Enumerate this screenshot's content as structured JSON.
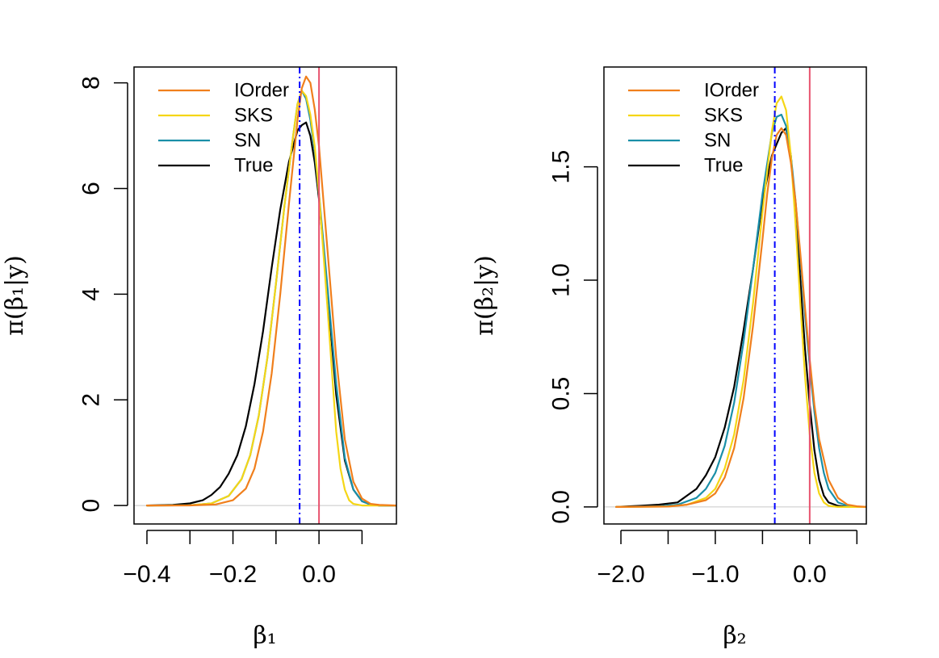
{
  "figure_title": "",
  "chart_data": [
    {
      "type": "line",
      "title": "",
      "xlabel": "β₁",
      "ylabel": "π(β₁|y)",
      "xlim": [
        -0.43,
        0.18
      ],
      "ylim": [
        -0.35,
        8.3
      ],
      "x_ticks": [
        -0.4,
        -0.3,
        -0.2,
        -0.1,
        0.0,
        0.1
      ],
      "x_tick_labels": [
        "−0.4",
        "",
        "−0.2",
        "",
        "0.0",
        ""
      ],
      "y_ticks": [
        0,
        2,
        4,
        6,
        8
      ],
      "y_tick_labels": [
        "0",
        "2",
        "4",
        "6",
        "8"
      ],
      "vlines": [
        {
          "x": -0.045,
          "style": "dashdot",
          "color": "#0000ff"
        },
        {
          "x": 0.0,
          "style": "solid",
          "color": "#e8536f"
        }
      ],
      "hline": {
        "y": 0,
        "color": "#c8c8c8"
      },
      "legend": {
        "position": "top-left",
        "entries": [
          "IOrder",
          "SKS",
          "SN",
          "True"
        ]
      },
      "series": [
        {
          "name": "True",
          "color": "#000000",
          "x": [
            -0.4,
            -0.34,
            -0.3,
            -0.27,
            -0.25,
            -0.23,
            -0.21,
            -0.19,
            -0.17,
            -0.15,
            -0.13,
            -0.11,
            -0.09,
            -0.07,
            -0.05,
            -0.04,
            -0.03,
            -0.02,
            -0.01,
            0.0,
            0.02,
            0.04,
            0.06,
            0.08,
            0.1,
            0.12,
            0.14,
            0.18
          ],
          "values": [
            0,
            0.01,
            0.04,
            0.1,
            0.2,
            0.35,
            0.6,
            0.95,
            1.5,
            2.3,
            3.3,
            4.5,
            5.6,
            6.5,
            7.1,
            7.2,
            7.25,
            7.0,
            6.5,
            5.8,
            4.0,
            2.1,
            0.85,
            0.3,
            0.08,
            0.02,
            0,
            0
          ]
        },
        {
          "name": "SN",
          "color": "#1a8fa8",
          "x": [
            -0.4,
            -0.3,
            -0.25,
            -0.21,
            -0.18,
            -0.16,
            -0.14,
            -0.12,
            -0.1,
            -0.08,
            -0.06,
            -0.05,
            -0.04,
            -0.03,
            -0.02,
            -0.01,
            0.0,
            0.02,
            0.04,
            0.06,
            0.08,
            0.1,
            0.12,
            0.14,
            0.18
          ],
          "values": [
            0,
            0.005,
            0.04,
            0.18,
            0.5,
            0.95,
            1.7,
            2.8,
            4.2,
            5.7,
            7.0,
            7.6,
            7.85,
            7.7,
            7.3,
            6.7,
            5.9,
            4.1,
            2.3,
            0.9,
            0.3,
            0.08,
            0.02,
            0,
            0
          ]
        },
        {
          "name": "SKS",
          "color": "#f5d616",
          "x": [
            -0.4,
            -0.3,
            -0.25,
            -0.21,
            -0.18,
            -0.16,
            -0.14,
            -0.12,
            -0.1,
            -0.08,
            -0.06,
            -0.05,
            -0.04,
            -0.03,
            -0.02,
            -0.01,
            0.0,
            0.02,
            0.04,
            0.05,
            0.06,
            0.07,
            0.08,
            0.1,
            0.18
          ],
          "values": [
            0,
            0.005,
            0.04,
            0.18,
            0.5,
            0.95,
            1.7,
            2.8,
            4.2,
            5.7,
            7.0,
            7.6,
            7.85,
            7.75,
            7.4,
            6.8,
            5.9,
            3.7,
            1.4,
            0.7,
            0.3,
            0.1,
            0.03,
            0,
            0
          ]
        },
        {
          "name": "IOrder",
          "color": "#f07f1c",
          "x": [
            -0.4,
            -0.3,
            -0.24,
            -0.2,
            -0.17,
            -0.15,
            -0.13,
            -0.11,
            -0.09,
            -0.07,
            -0.05,
            -0.04,
            -0.03,
            -0.02,
            -0.01,
            0.0,
            0.02,
            0.04,
            0.06,
            0.08,
            0.1,
            0.12,
            0.14,
            0.18
          ],
          "values": [
            0,
            0.002,
            0.02,
            0.1,
            0.32,
            0.7,
            1.4,
            2.5,
            4.0,
            5.7,
            7.3,
            7.9,
            8.12,
            8.0,
            7.5,
            6.8,
            4.8,
            2.8,
            1.25,
            0.45,
            0.13,
            0.03,
            0.01,
            0
          ]
        }
      ]
    },
    {
      "type": "line",
      "title": "",
      "xlabel": "β₂",
      "ylabel": "π(β₂|y)",
      "xlim": [
        -2.18,
        0.6
      ],
      "ylim": [
        -0.075,
        1.94
      ],
      "x_ticks": [
        -2.0,
        -1.5,
        -1.0,
        -0.5,
        0.0,
        0.5
      ],
      "x_tick_labels": [
        "−2.0",
        "",
        "−1.0",
        "",
        "0.0",
        ""
      ],
      "y_ticks": [
        0.0,
        0.5,
        1.0,
        1.5
      ],
      "y_tick_labels": [
        "0.0",
        "0.5",
        "1.0",
        "1.5"
      ],
      "vlines": [
        {
          "x": -0.37,
          "style": "dashdot",
          "color": "#0000ff"
        },
        {
          "x": 0.0,
          "style": "solid",
          "color": "#e8536f"
        }
      ],
      "hline": {
        "y": 0,
        "color": "#c8c8c8"
      },
      "legend": {
        "position": "top-left",
        "entries": [
          "IOrder",
          "SKS",
          "SN",
          "True"
        ]
      },
      "series": [
        {
          "name": "True",
          "color": "#000000",
          "x": [
            -2.05,
            -1.8,
            -1.6,
            -1.4,
            -1.3,
            -1.2,
            -1.1,
            -1.0,
            -0.9,
            -0.8,
            -0.7,
            -0.6,
            -0.5,
            -0.45,
            -0.4,
            -0.35,
            -0.3,
            -0.25,
            -0.2,
            -0.15,
            -0.1,
            -0.05,
            0.0,
            0.05,
            0.1,
            0.15,
            0.2,
            0.3,
            0.4,
            0.5
          ],
          "values": [
            0,
            0.005,
            0.01,
            0.02,
            0.05,
            0.08,
            0.14,
            0.22,
            0.35,
            0.53,
            0.78,
            1.05,
            1.35,
            1.45,
            1.55,
            1.6,
            1.65,
            1.67,
            1.55,
            1.3,
            1.0,
            0.7,
            0.45,
            0.25,
            0.12,
            0.05,
            0.02,
            0.005,
            0,
            0
          ]
        },
        {
          "name": "SN",
          "color": "#1a8fa8",
          "x": [
            -2.05,
            -1.6,
            -1.4,
            -1.2,
            -1.1,
            -1.0,
            -0.9,
            -0.8,
            -0.7,
            -0.6,
            -0.5,
            -0.4,
            -0.35,
            -0.3,
            -0.25,
            -0.2,
            -0.15,
            -0.1,
            -0.05,
            0.0,
            0.05,
            0.1,
            0.15,
            0.2,
            0.3,
            0.4,
            0.5,
            0.6
          ],
          "values": [
            0,
            0.003,
            0.01,
            0.04,
            0.08,
            0.15,
            0.27,
            0.46,
            0.73,
            1.05,
            1.38,
            1.65,
            1.72,
            1.73,
            1.68,
            1.55,
            1.35,
            1.1,
            0.85,
            0.62,
            0.42,
            0.26,
            0.15,
            0.08,
            0.02,
            0.005,
            0,
            0
          ]
        },
        {
          "name": "SKS",
          "color": "#f5d616",
          "x": [
            -2.05,
            -1.5,
            -1.3,
            -1.1,
            -1.0,
            -0.9,
            -0.8,
            -0.7,
            -0.6,
            -0.5,
            -0.4,
            -0.35,
            -0.3,
            -0.25,
            -0.2,
            -0.15,
            -0.1,
            -0.05,
            0.0,
            0.05,
            0.1,
            0.15,
            0.2,
            0.3,
            0.6
          ],
          "values": [
            0,
            0.002,
            0.01,
            0.04,
            0.08,
            0.17,
            0.32,
            0.56,
            0.9,
            1.3,
            1.66,
            1.78,
            1.81,
            1.75,
            1.55,
            1.25,
            0.9,
            0.58,
            0.32,
            0.15,
            0.06,
            0.02,
            0.005,
            0,
            0
          ]
        },
        {
          "name": "IOrder",
          "color": "#f07f1c",
          "x": [
            -2.05,
            -1.5,
            -1.3,
            -1.1,
            -1.0,
            -0.9,
            -0.8,
            -0.7,
            -0.6,
            -0.5,
            -0.45,
            -0.4,
            -0.35,
            -0.3,
            -0.25,
            -0.2,
            -0.15,
            -0.1,
            -0.05,
            0.0,
            0.05,
            0.1,
            0.2,
            0.3,
            0.4,
            0.5,
            0.6
          ],
          "values": [
            0,
            0.002,
            0.01,
            0.03,
            0.06,
            0.13,
            0.26,
            0.48,
            0.8,
            1.18,
            1.38,
            1.54,
            1.64,
            1.67,
            1.64,
            1.52,
            1.35,
            1.12,
            0.88,
            0.65,
            0.45,
            0.3,
            0.12,
            0.04,
            0.01,
            0.003,
            0
          ]
        }
      ]
    }
  ]
}
